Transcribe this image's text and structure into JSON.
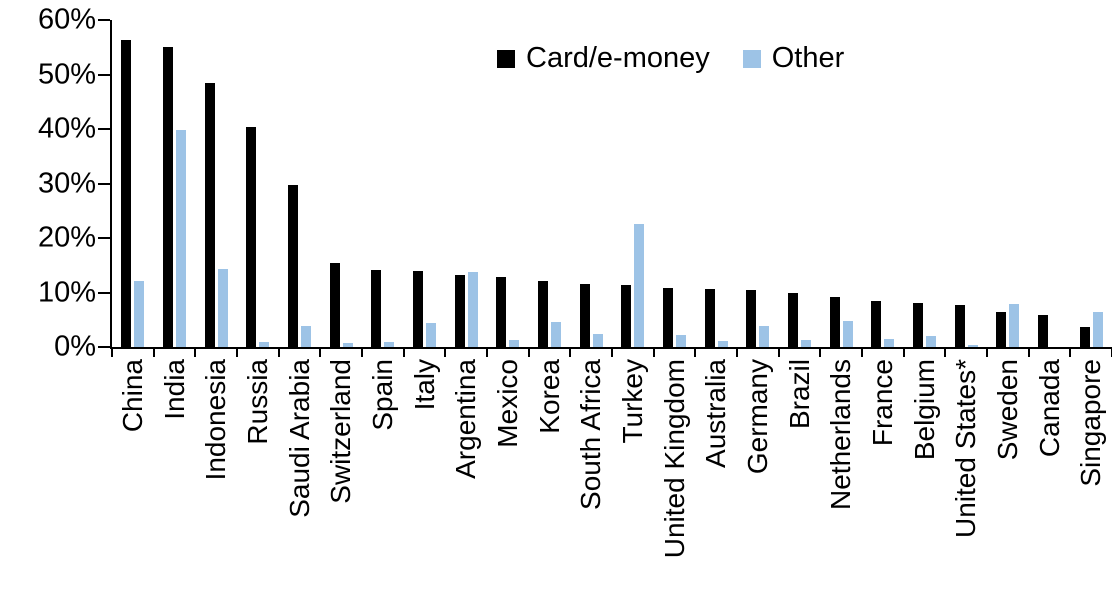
{
  "chart_data": {
    "type": "bar",
    "title": "",
    "xlabel": "",
    "ylabel": "",
    "ylim": [
      0,
      60
    ],
    "ytick_interval": 10,
    "yticks": [
      "0%",
      "10%",
      "20%",
      "30%",
      "40%",
      "50%",
      "60%"
    ],
    "grid": "off",
    "legend_position": "top",
    "categories": [
      "China",
      "India",
      "Indonesia",
      "Russia",
      "Saudi Arabia",
      "Switzerland",
      "Spain",
      "Italy",
      "Argentina",
      "Mexico",
      "Korea",
      "South Africa",
      "Turkey",
      "United Kingdom",
      "Australia",
      "Germany",
      "Brazil",
      "Netherlands",
      "France",
      "Belgium",
      "United States*",
      "Sweden",
      "Canada",
      "Singapore"
    ],
    "series": [
      {
        "name": "Card/e-money",
        "color": "#000000",
        "values": [
          56.3,
          55.1,
          48.4,
          40.4,
          29.8,
          15.5,
          14.1,
          13.9,
          13.3,
          12.8,
          12.1,
          11.6,
          11.4,
          10.9,
          10.6,
          10.4,
          9.9,
          9.1,
          8.5,
          8.1,
          7.7,
          6.5,
          5.9,
          3.7
        ]
      },
      {
        "name": "Other",
        "color": "#9DC3E6",
        "values": [
          12.2,
          39.8,
          14.4,
          1.0,
          3.9,
          0.7,
          0.9,
          4.4,
          13.8,
          1.3,
          4.5,
          2.3,
          22.5,
          2.2,
          1.1,
          3.9,
          1.2,
          4.8,
          1.5,
          2.0,
          0.3,
          7.9,
          0,
          6.5
        ]
      }
    ]
  },
  "legend": {
    "card_label": "Card/e-money",
    "other_label": "Other"
  },
  "colors": {
    "card": "#000000",
    "other": "#9DC3E6",
    "axis": "#000000",
    "background": "#ffffff"
  }
}
